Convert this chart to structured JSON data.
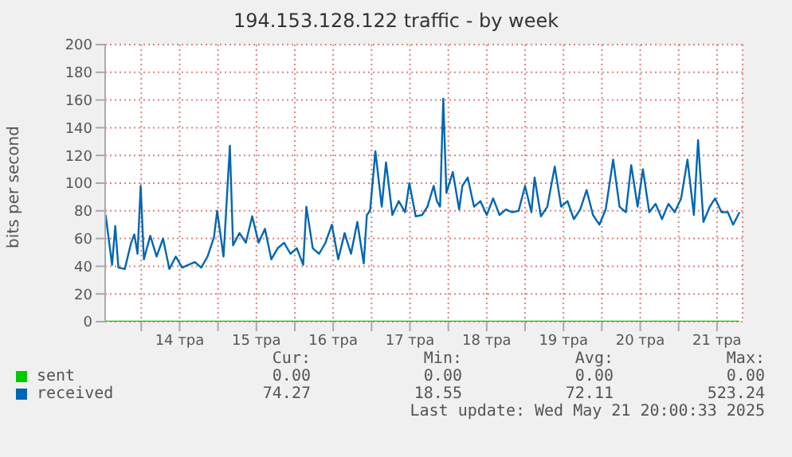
{
  "chart_data": {
    "type": "line",
    "title": "194.153.128.122 traffic - by week",
    "ylabel": "bits per second",
    "xlim": [
      "2025-05-13T12:43",
      "2025-05-21T20:00"
    ],
    "xticks": [
      {
        "value": "2025-05-14T00:00",
        "label": null
      },
      {
        "value": "2025-05-14T12:00",
        "label": "14 тра"
      },
      {
        "value": "2025-05-15T00:00",
        "label": null
      },
      {
        "value": "2025-05-15T12:00",
        "label": "15 тра"
      },
      {
        "value": "2025-05-16T00:00",
        "label": null
      },
      {
        "value": "2025-05-16T12:00",
        "label": "16 тра"
      },
      {
        "value": "2025-05-17T00:00",
        "label": null
      },
      {
        "value": "2025-05-17T12:00",
        "label": "17 тра"
      },
      {
        "value": "2025-05-18T00:00",
        "label": null
      },
      {
        "value": "2025-05-18T12:00",
        "label": "18 тра"
      },
      {
        "value": "2025-05-19T00:00",
        "label": null
      },
      {
        "value": "2025-05-19T12:00",
        "label": "19 тра"
      },
      {
        "value": "2025-05-20T00:00",
        "label": null
      },
      {
        "value": "2025-05-20T12:00",
        "label": "20 тра"
      },
      {
        "value": "2025-05-21T00:00",
        "label": null
      },
      {
        "value": "2025-05-21T12:00",
        "label": "21 тра"
      }
    ],
    "ylim": [
      0,
      200
    ],
    "yticks": [
      0,
      20,
      40,
      60,
      80,
      100,
      120,
      140,
      160,
      180,
      200
    ],
    "grid": true,
    "legend": "bottom",
    "marker": "none",
    "line_style": "solid",
    "series": [
      {
        "name": "sent",
        "color": "#00cc00",
        "x": [
          "2025-05-13T12:52",
          "2025-05-21T19:02"
        ],
        "values": [
          0,
          0
        ]
      },
      {
        "name": "received",
        "color": "#0066b3",
        "x": [
          "2025-05-13T12:52",
          "2025-05-13T14:52",
          "2025-05-13T15:52",
          "2025-05-13T16:51",
          "2025-05-13T18:51",
          "2025-05-13T20:50",
          "2025-05-13T21:50",
          "2025-05-13T22:50",
          "2025-05-13T23:49",
          "2025-05-14T00:49",
          "2025-05-14T02:49",
          "2025-05-14T04:48",
          "2025-05-14T06:48",
          "2025-05-14T08:47",
          "2025-05-14T10:47",
          "2025-05-14T12:46",
          "2025-05-14T14:46",
          "2025-05-14T16:45",
          "2025-05-14T18:45",
          "2025-05-14T20:44",
          "2025-05-14T22:44",
          "2025-05-14T23:44",
          "2025-05-15T01:43",
          "2025-05-15T03:42",
          "2025-05-15T04:42",
          "2025-05-15T06:42",
          "2025-05-15T08:41",
          "2025-05-15T10:41",
          "2025-05-15T12:41",
          "2025-05-15T14:40",
          "2025-05-15T16:40",
          "2025-05-15T18:39",
          "2025-05-15T20:39",
          "2025-05-15T22:38",
          "2025-05-16T00:38",
          "2025-05-16T02:37",
          "2025-05-16T03:37",
          "2025-05-16T05:37",
          "2025-05-16T07:36",
          "2025-05-16T09:36",
          "2025-05-16T11:35",
          "2025-05-16T13:35",
          "2025-05-16T15:34",
          "2025-05-16T17:34",
          "2025-05-16T19:33",
          "2025-05-16T21:33",
          "2025-05-16T22:32",
          "2025-05-16T23:32",
          "2025-05-17T01:12",
          "2025-05-17T03:11",
          "2025-05-17T04:31",
          "2025-05-17T06:30",
          "2025-05-17T08:30",
          "2025-05-17T10:29",
          "2025-05-17T11:49",
          "2025-05-17T13:48",
          "2025-05-17T15:48",
          "2025-05-17T17:28",
          "2025-05-17T19:25",
          "2025-05-17T20:25",
          "2025-05-17T21:25",
          "2025-05-17T22:25",
          "2025-05-17T23:24",
          "2025-05-18T01:24",
          "2025-05-18T03:23",
          "2025-05-18T04:23",
          "2025-05-18T06:03",
          "2025-05-18T08:02",
          "2025-05-18T10:02",
          "2025-05-18T12:01",
          "2025-05-18T14:01",
          "2025-05-18T16:00",
          "2025-05-18T18:00",
          "2025-05-18T19:59",
          "2025-05-18T21:59",
          "2025-05-18T23:59",
          "2025-05-19T01:58",
          "2025-05-19T02:58",
          "2025-05-19T04:57",
          "2025-05-19T06:57",
          "2025-05-19T09:16",
          "2025-05-19T11:16",
          "2025-05-19T13:15",
          "2025-05-19T15:15",
          "2025-05-19T17:14",
          "2025-05-19T19:14",
          "2025-05-19T21:13",
          "2025-05-19T23:13",
          "2025-05-20T01:12",
          "2025-05-20T03:32",
          "2025-05-20T05:31",
          "2025-05-20T07:31",
          "2025-05-20T09:11",
          "2025-05-20T11:10",
          "2025-05-20T12:50",
          "2025-05-20T14:49",
          "2025-05-20T16:49",
          "2025-05-20T18:48",
          "2025-05-20T20:48",
          "2025-05-20T22:47",
          "2025-05-21T00:47",
          "2025-05-21T02:46",
          "2025-05-21T04:46",
          "2025-05-21T06:05",
          "2025-05-21T07:45",
          "2025-05-21T09:45",
          "2025-05-21T11:24",
          "2025-05-21T13:24",
          "2025-05-21T15:23",
          "2025-05-21T17:03",
          "2025-05-21T19:02"
        ],
        "values": [
          77,
          41,
          69,
          39,
          38,
          57,
          63,
          49,
          98,
          45,
          62,
          47,
          60,
          38,
          47,
          39,
          41,
          43,
          39,
          47,
          61,
          80,
          47,
          127,
          55,
          64,
          57,
          76,
          57,
          67,
          45,
          53,
          57,
          49,
          53,
          41,
          83,
          53,
          49,
          57,
          70,
          45,
          64,
          49,
          72,
          42,
          77,
          80,
          123,
          83,
          115,
          77,
          87,
          79,
          100,
          76,
          77,
          83,
          98,
          87,
          83,
          161,
          93,
          108,
          81,
          98,
          104,
          83,
          87,
          77,
          89,
          77,
          81,
          79,
          80,
          98,
          79,
          104,
          76,
          83,
          112,
          83,
          87,
          74,
          81,
          95,
          77,
          70,
          81,
          117,
          83,
          79,
          113,
          83,
          110,
          79,
          85,
          74,
          85,
          79,
          89,
          117,
          77,
          131,
          72,
          83,
          89,
          79,
          79,
          70,
          79
        ]
      }
    ],
    "annotations": [
      "Cur:",
      "Min:",
      "Avg:",
      "Max:",
      "0.00",
      "0.00",
      "0.00",
      "0.00",
      "74.27",
      "18.55",
      "72.11",
      "523.24",
      "Last update: Wed May 21 20:00:33 2025"
    ]
  }
}
